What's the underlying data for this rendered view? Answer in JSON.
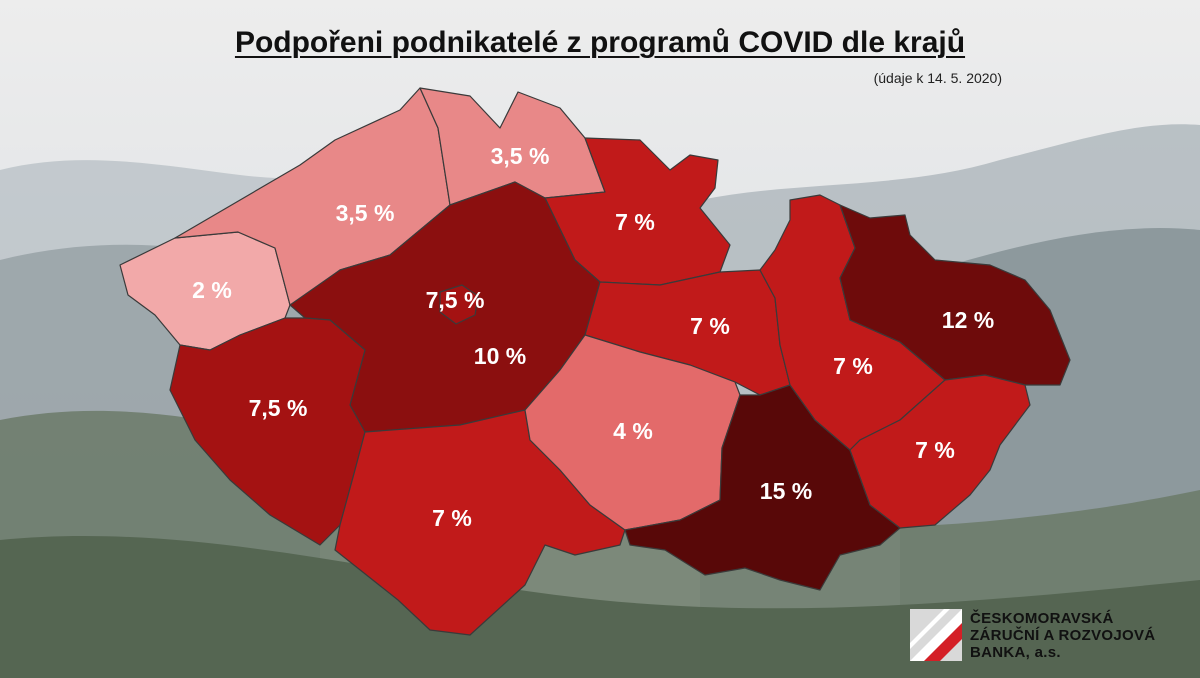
{
  "title": "Podpořeni podnikatelé z programů COVID dle krajů",
  "subtitle": "(údaje k 14. 5. 2020)",
  "colors": {
    "c2": "#f2a9a9",
    "c35": "#e88888",
    "c4": "#e36a6a",
    "c7": "#c11a1a",
    "c75": "#a41212",
    "c10": "#8b0f0f",
    "c12": "#6e0b0b",
    "c15": "#580808"
  },
  "regions": [
    {
      "id": "karlovarsky",
      "label": "2 %",
      "value": 2
    },
    {
      "id": "ustecky",
      "label": "3,5 %",
      "value": 3.5
    },
    {
      "id": "liberecky",
      "label": "3,5 %",
      "value": 3.5
    },
    {
      "id": "kralovehradecky",
      "label": "7 %",
      "value": 7
    },
    {
      "id": "praha",
      "label": "7,5 %",
      "value": 7.5
    },
    {
      "id": "stredocesky",
      "label": "10 %",
      "value": 10
    },
    {
      "id": "pardubicky",
      "label": "7 %",
      "value": 7
    },
    {
      "id": "plzensky",
      "label": "7,5 %",
      "value": 7.5
    },
    {
      "id": "jihocesky",
      "label": "7 %",
      "value": 7
    },
    {
      "id": "vysocina",
      "label": "4 %",
      "value": 4
    },
    {
      "id": "jihomoravsky",
      "label": "15 %",
      "value": 15
    },
    {
      "id": "olomoucky",
      "label": "7 %",
      "value": 7
    },
    {
      "id": "moravskoslezsky",
      "label": "12 %",
      "value": 12
    },
    {
      "id": "zlinsky",
      "label": "7 %",
      "value": 7
    }
  ],
  "logo": {
    "line1": "ČESKOMORAVSKÁ",
    "line2": "ZÁRUČNÍ A ROZVOJOVÁ",
    "line3": "BANKA, a.s."
  }
}
